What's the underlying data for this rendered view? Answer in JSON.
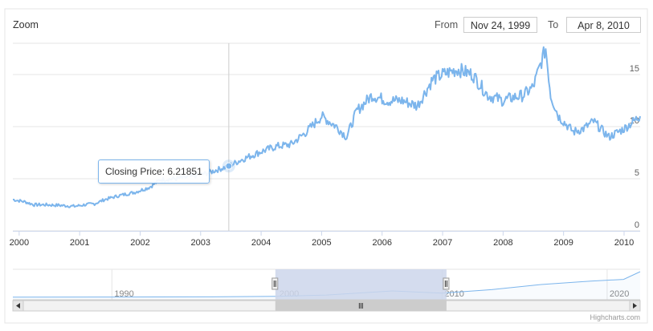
{
  "range_selector": {
    "zoom_label": "Zoom",
    "from_label": "From",
    "from_value": "Nov 24, 1999",
    "to_label": "To",
    "to_value": "Apr 8, 2010"
  },
  "tooltip": {
    "label": "Closing Price: 6.21851",
    "date": "2003-06-20",
    "value": 6.21851
  },
  "credits": "Highcharts.com",
  "colors": {
    "series": "#7cb5ec",
    "grid": "#e6e6e6",
    "navigator_mask": "#ccd6eb",
    "scrollbar": "#cccccc"
  },
  "chart_data": {
    "type": "line",
    "title": "",
    "xlabel": "",
    "ylabel": "",
    "xlim": [
      "1999-11-24",
      "2010-04-08"
    ],
    "ylim": [
      0,
      18
    ],
    "y_ticks": [
      "0",
      "5",
      "10",
      "15"
    ],
    "x_ticks": [
      "2000",
      "2001",
      "2002",
      "2003",
      "2004",
      "2005",
      "2006",
      "2007",
      "2008",
      "2009",
      "2010"
    ],
    "grid": true,
    "legend": "none",
    "series": [
      {
        "name": "Closing Price",
        "points": [
          [
            "1999-11-24",
            3.0
          ],
          [
            "2000-02-01",
            2.8
          ],
          [
            "2000-04-01",
            2.5
          ],
          [
            "2000-06-01",
            2.5
          ],
          [
            "2000-09-01",
            2.45
          ],
          [
            "2000-12-01",
            2.35
          ],
          [
            "2001-02-01",
            2.5
          ],
          [
            "2001-04-01",
            2.6
          ],
          [
            "2001-06-01",
            3.0
          ],
          [
            "2001-09-01",
            3.4
          ],
          [
            "2001-12-01",
            3.7
          ],
          [
            "2002-03-01",
            4.2
          ],
          [
            "2002-05-01",
            4.9
          ],
          [
            "2002-08-01",
            5.0
          ],
          [
            "2002-11-01",
            5.2
          ],
          [
            "2003-02-01",
            5.5
          ],
          [
            "2003-06-20",
            6.22
          ],
          [
            "2003-09-01",
            6.8
          ],
          [
            "2004-01-01",
            7.6
          ],
          [
            "2004-04-01",
            8.1
          ],
          [
            "2004-07-01",
            8.3
          ],
          [
            "2004-10-01",
            9.5
          ],
          [
            "2005-01-01",
            11.0
          ],
          [
            "2005-04-01",
            10.0
          ],
          [
            "2005-06-01",
            9.0
          ],
          [
            "2005-08-01",
            11.5
          ],
          [
            "2005-11-01",
            13.0
          ],
          [
            "2006-02-01",
            12.5
          ],
          [
            "2006-05-01",
            12.5
          ],
          [
            "2006-08-01",
            12.0
          ],
          [
            "2006-11-01",
            14.5
          ],
          [
            "2007-01-01",
            15.0
          ],
          [
            "2007-04-01",
            15.5
          ],
          [
            "2007-07-01",
            15.0
          ],
          [
            "2007-10-01",
            13.0
          ],
          [
            "2008-01-01",
            12.5
          ],
          [
            "2008-03-01",
            12.8
          ],
          [
            "2008-05-01",
            13.0
          ],
          [
            "2008-07-01",
            13.8
          ],
          [
            "2008-09-15",
            17.5
          ],
          [
            "2008-10-15",
            13.0
          ],
          [
            "2008-12-01",
            11.0
          ],
          [
            "2009-03-01",
            9.5
          ],
          [
            "2009-05-01",
            9.8
          ],
          [
            "2009-07-01",
            10.5
          ],
          [
            "2009-10-01",
            9.0
          ],
          [
            "2010-01-01",
            9.8
          ],
          [
            "2010-04-08",
            11.0
          ]
        ]
      }
    ]
  },
  "navigator": {
    "ticks": [
      "1990",
      "2000",
      "2010",
      "2020"
    ],
    "range": [
      1984,
      2022
    ],
    "selected": [
      1999.9,
      2010.27
    ],
    "line": [
      [
        1984,
        0.6
      ],
      [
        1990,
        0.8
      ],
      [
        1996,
        1.2
      ],
      [
        2000,
        2.5
      ],
      [
        2003,
        5.5
      ],
      [
        2007,
        15
      ],
      [
        2010,
        10
      ],
      [
        2013,
        18
      ],
      [
        2016,
        30
      ],
      [
        2019,
        38
      ],
      [
        2021,
        42
      ],
      [
        2022,
        60
      ]
    ]
  }
}
